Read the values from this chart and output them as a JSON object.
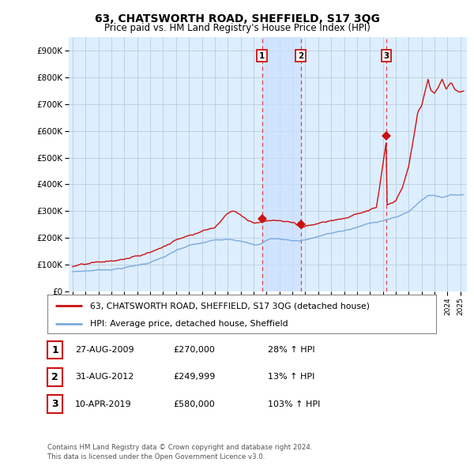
{
  "title": "63, CHATSWORTH ROAD, SHEFFIELD, S17 3QG",
  "subtitle": "Price paid vs. HM Land Registry's House Price Index (HPI)",
  "footer": "Contains HM Land Registry data © Crown copyright and database right 2024.\nThis data is licensed under the Open Government Licence v3.0.",
  "legend_line1": "63, CHATSWORTH ROAD, SHEFFIELD, S17 3QG (detached house)",
  "legend_line2": "HPI: Average price, detached house, Sheffield",
  "transactions": [
    {
      "num": 1,
      "date": "27-AUG-2009",
      "price": "£270,000",
      "pct": "28% ↑ HPI",
      "year": 2009.65,
      "value": 270000
    },
    {
      "num": 2,
      "date": "31-AUG-2012",
      "price": "£249,999",
      "pct": "13% ↑ HPI",
      "year": 2012.65,
      "value": 249999
    },
    {
      "num": 3,
      "date": "10-APR-2019",
      "price": "£580,000",
      "pct": "103% ↑ HPI",
      "year": 2019.27,
      "value": 580000
    }
  ],
  "hpi_color": "#7aaadd",
  "price_color": "#cc1111",
  "vline_color": "#dd4444",
  "background_color": "#ffffff",
  "plot_bg_color": "#ddeeff",
  "grid_color": "#bbccdd",
  "shade_color": "#cce0ff",
  "ylim": [
    0,
    950000
  ],
  "yticks": [
    0,
    100000,
    200000,
    300000,
    400000,
    500000,
    600000,
    700000,
    800000,
    900000
  ],
  "xlim": [
    1994.7,
    2025.5
  ]
}
